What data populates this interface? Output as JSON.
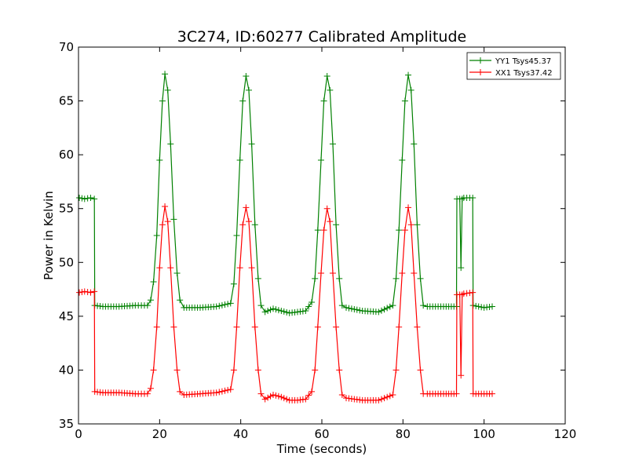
{
  "chart_data": {
    "type": "line",
    "title": "3C274, ID:60277 Calibrated Amplitude",
    "xlabel": "Time (seconds)",
    "ylabel": "Power in Kelvin",
    "xlim": [
      0,
      120
    ],
    "ylim": [
      35,
      70
    ],
    "xticks": [
      0,
      20,
      40,
      60,
      80,
      100,
      120
    ],
    "yticks": [
      35,
      40,
      45,
      50,
      55,
      60,
      65,
      70
    ],
    "grid": false,
    "legend_position": "top-right",
    "marker": "+",
    "series": [
      {
        "name": "YY1 Tsys45.37",
        "color": "#008000",
        "x": [
          0.2,
          1.5,
          3.0,
          3.9,
          4.0,
          6.0,
          10.0,
          14.0,
          17.0,
          17.8,
          18.5,
          19.3,
          20.0,
          20.7,
          21.3,
          22.0,
          22.7,
          23.5,
          24.3,
          25.0,
          26.0,
          30.0,
          34.0,
          37.5,
          38.3,
          39.0,
          39.8,
          40.5,
          41.3,
          42.0,
          42.7,
          43.5,
          44.3,
          45.0,
          46.0,
          48.0,
          50.0,
          52.0,
          54.0,
          56.0,
          57.5,
          58.3,
          59.0,
          59.8,
          60.5,
          61.3,
          62.0,
          62.7,
          63.5,
          64.3,
          65.0,
          66.0,
          70.0,
          74.0,
          77.5,
          78.3,
          79.0,
          79.8,
          80.5,
          81.3,
          82.0,
          82.7,
          83.5,
          84.3,
          85.0,
          86.0,
          90.0,
          93.2,
          93.3,
          94.0,
          94.3,
          94.6,
          95.0,
          97.2,
          97.3,
          100.0,
          102.0
        ],
        "y": [
          56.0,
          55.9,
          56.0,
          55.9,
          46.0,
          45.9,
          45.9,
          46.0,
          46.0,
          46.5,
          48.2,
          52.5,
          59.5,
          65.0,
          67.5,
          66.0,
          61.0,
          54.0,
          49.0,
          46.5,
          45.8,
          45.8,
          45.9,
          46.2,
          48.0,
          52.5,
          59.5,
          65.0,
          67.3,
          66.0,
          61.0,
          53.5,
          48.5,
          46.0,
          45.4,
          45.7,
          45.5,
          45.3,
          45.4,
          45.5,
          46.3,
          48.5,
          53.0,
          59.5,
          65.0,
          67.3,
          66.0,
          61.0,
          53.5,
          48.5,
          46.0,
          45.8,
          45.5,
          45.4,
          46.0,
          48.5,
          53.0,
          59.5,
          65.0,
          67.4,
          66.0,
          61.0,
          53.5,
          48.5,
          46.0,
          45.9,
          45.9,
          45.9,
          55.9,
          55.9,
          49.5,
          55.9,
          56.0,
          56.0,
          46.0,
          45.8,
          45.9
        ]
      },
      {
        "name": "XX1 Tsys37.42",
        "color": "#ff0000",
        "x": [
          0.2,
          1.5,
          3.0,
          3.9,
          4.0,
          6.0,
          10.0,
          14.0,
          17.0,
          17.8,
          18.5,
          19.3,
          20.0,
          20.7,
          21.3,
          22.0,
          22.7,
          23.5,
          24.3,
          25.0,
          26.0,
          30.0,
          34.0,
          37.5,
          38.3,
          39.0,
          39.8,
          40.5,
          41.3,
          42.0,
          42.7,
          43.5,
          44.3,
          45.0,
          46.0,
          48.0,
          50.0,
          52.0,
          54.0,
          56.0,
          57.5,
          58.3,
          59.0,
          59.8,
          60.5,
          61.3,
          62.0,
          62.7,
          63.5,
          64.3,
          65.0,
          66.0,
          70.0,
          74.0,
          77.5,
          78.3,
          79.0,
          79.8,
          80.5,
          81.3,
          82.0,
          82.7,
          83.5,
          84.3,
          85.0,
          86.0,
          90.0,
          93.2,
          93.3,
          94.0,
          94.3,
          94.6,
          95.0,
          97.2,
          97.3,
          100.0,
          102.0
        ],
        "y": [
          47.2,
          47.3,
          47.2,
          47.3,
          38.0,
          37.9,
          37.9,
          37.8,
          37.8,
          38.3,
          40.0,
          44.0,
          49.5,
          53.5,
          55.2,
          53.8,
          49.5,
          44.0,
          40.0,
          38.0,
          37.7,
          37.8,
          37.9,
          38.2,
          40.0,
          44.0,
          49.5,
          53.5,
          55.1,
          53.8,
          49.5,
          44.0,
          40.0,
          37.8,
          37.3,
          37.7,
          37.5,
          37.2,
          37.2,
          37.3,
          38.0,
          40.0,
          44.0,
          49.0,
          53.0,
          55.0,
          53.8,
          49.0,
          44.0,
          40.0,
          37.7,
          37.4,
          37.2,
          37.2,
          37.7,
          40.0,
          44.0,
          49.0,
          53.0,
          55.1,
          53.5,
          49.0,
          44.0,
          40.0,
          37.8,
          37.8,
          37.8,
          37.8,
          47.0,
          47.0,
          39.5,
          47.0,
          47.1,
          47.2,
          37.8,
          37.8,
          37.8
        ]
      }
    ]
  }
}
